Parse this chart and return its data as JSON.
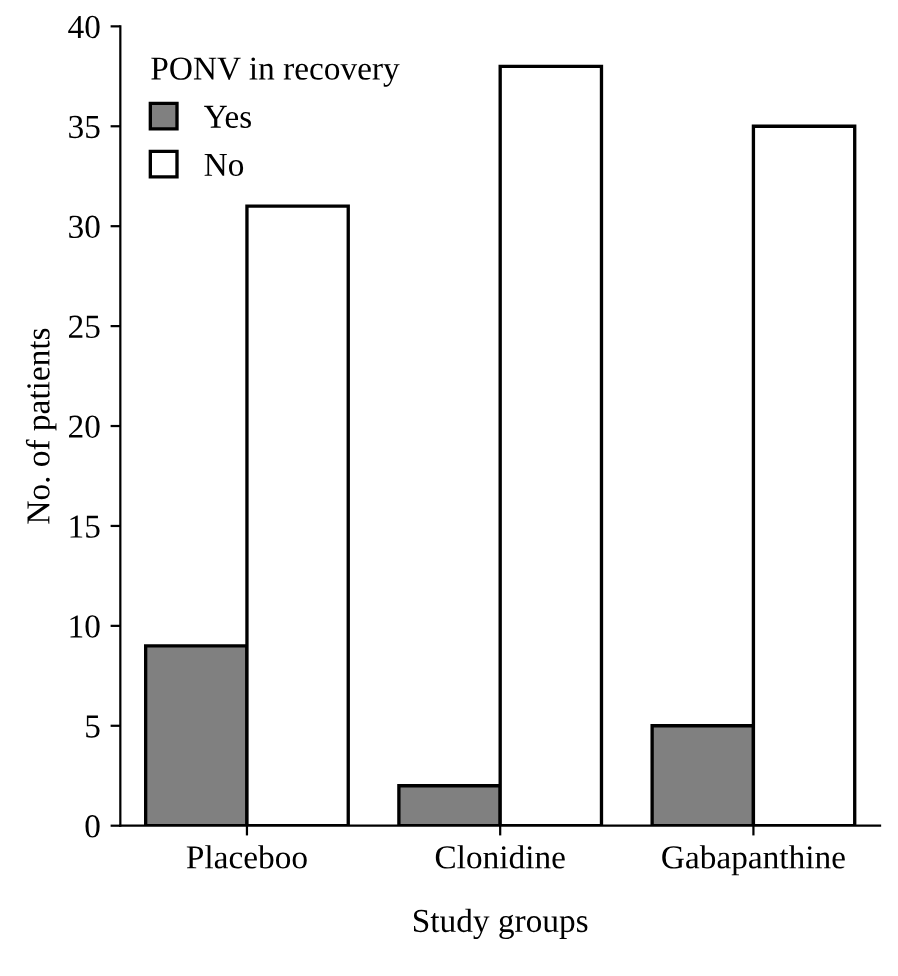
{
  "chart_data": {
    "type": "bar",
    "xlabel": "Study groups",
    "ylabel": "No. of patients",
    "legend_title": "PONV in recovery",
    "categories": [
      "Placeboo",
      "Clonidine",
      "Gabapanthine"
    ],
    "series": [
      {
        "name": "Yes",
        "color": "#808080",
        "values": [
          9,
          2,
          5
        ]
      },
      {
        "name": "No",
        "color": "#ffffff",
        "values": [
          31,
          38,
          35
        ]
      }
    ],
    "ylim": [
      0,
      40
    ],
    "yticks": [
      0,
      5,
      10,
      15,
      20,
      25,
      30,
      35,
      40
    ],
    "grid": false,
    "legend": "top left"
  }
}
